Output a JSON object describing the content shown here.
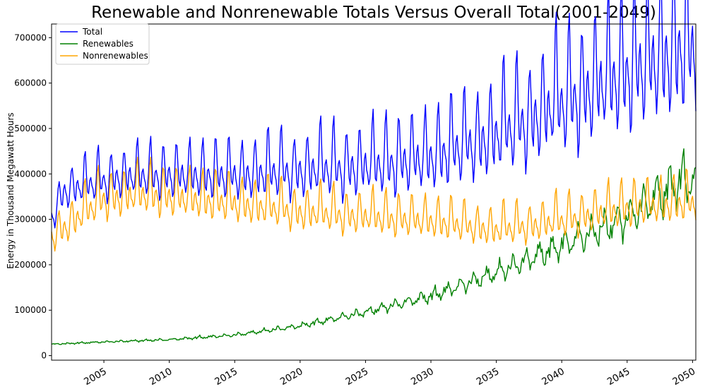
{
  "chart_data": {
    "type": "line",
    "title": "Renewable and Nonrenewable Totals Versus Overall Total(2001-2049)",
    "xlabel": "",
    "ylabel": "Energy in Thousand Megawatt Hours",
    "x_start": "2001-01",
    "x_end": "2050-04",
    "xlim": [
      "2001-01",
      "2050-04"
    ],
    "ylim": [
      -10000,
      730000
    ],
    "x_ticks": [
      2005,
      2010,
      2015,
      2020,
      2025,
      2030,
      2035,
      2040,
      2045,
      2050
    ],
    "y_ticks": [
      0,
      100000,
      200000,
      300000,
      400000,
      500000,
      600000,
      700000
    ],
    "legend_position": "top-left",
    "grid": false,
    "series": [
      {
        "name": "Total",
        "color": "#0000ff",
        "points": [
          [
            "2001-01",
            305000
          ],
          [
            "2002-01",
            365000
          ],
          [
            "2006-01",
            395000
          ],
          [
            "2010-01",
            400000
          ],
          [
            "2015-01",
            400000
          ],
          [
            "2020-01",
            410000
          ],
          [
            "2025-01",
            420000
          ],
          [
            "2030-01",
            440000
          ],
          [
            "2035-01",
            490000
          ],
          [
            "2040-01",
            560000
          ],
          [
            "2045-01",
            630000
          ],
          [
            "2049-01",
            680000
          ]
        ]
      },
      {
        "name": "Renewables",
        "color": "#008000",
        "points": [
          [
            "2001-01",
            25000
          ],
          [
            "2005-01",
            30000
          ],
          [
            "2010-01",
            35000
          ],
          [
            "2015-01",
            45000
          ],
          [
            "2020-01",
            65000
          ],
          [
            "2025-01",
            95000
          ],
          [
            "2030-01",
            130000
          ],
          [
            "2035-01",
            180000
          ],
          [
            "2040-01",
            240000
          ],
          [
            "2045-01",
            300000
          ],
          [
            "2049-01",
            380000
          ]
        ]
      },
      {
        "name": "Nonrenewables",
        "color": "#ffa500",
        "points": [
          [
            "2001-01",
            265000
          ],
          [
            "2005-01",
            350000
          ],
          [
            "2008-01",
            360000
          ],
          [
            "2010-01",
            355000
          ],
          [
            "2015-01",
            340000
          ],
          [
            "2020-01",
            320000
          ],
          [
            "2025-01",
            310000
          ],
          [
            "2030-01",
            300000
          ],
          [
            "2035-01",
            280000
          ],
          [
            "2040-01",
            300000
          ],
          [
            "2045-01",
            330000
          ],
          [
            "2049-01",
            340000
          ]
        ]
      }
    ]
  }
}
